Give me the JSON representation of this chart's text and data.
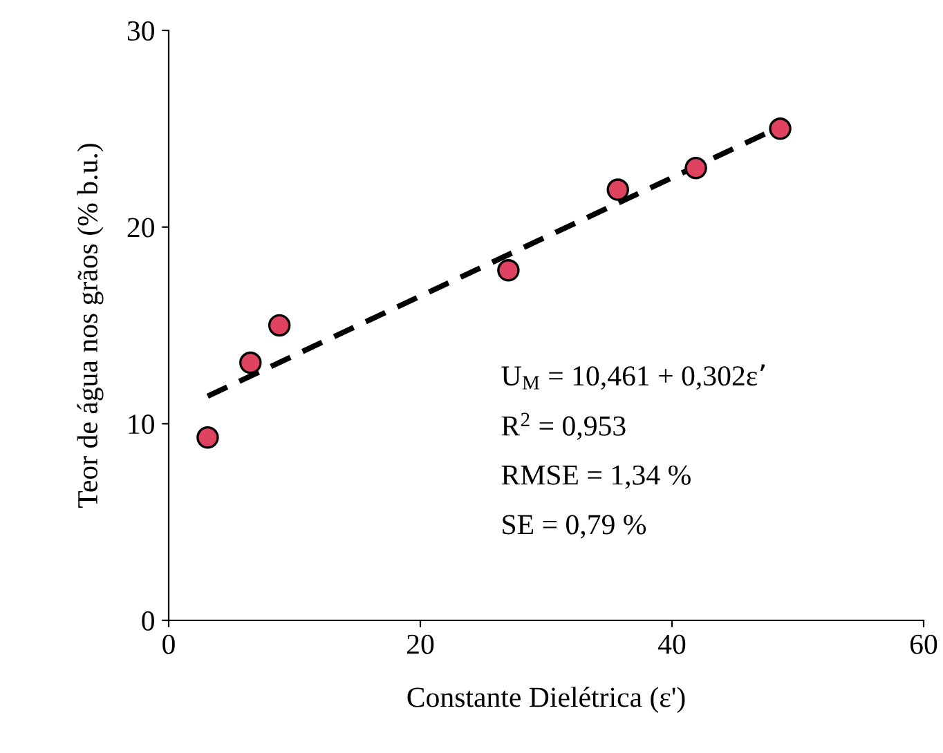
{
  "chart_data": {
    "type": "scatter",
    "xlabel": "Constante Dielétrica (ε')",
    "ylabel": "Teor de água nos grãos (% b.u.)",
    "xlim": [
      0,
      60
    ],
    "xticks": [
      0,
      20,
      40,
      60
    ],
    "ylim": [
      0,
      30
    ],
    "yticks": [
      0,
      10,
      20,
      30
    ],
    "grid": false,
    "legend": false,
    "series": [
      {
        "color": "#e0435f",
        "marker": "circle",
        "x": [
          3.1,
          6.5,
          8.8,
          27.0,
          35.7,
          41.9,
          48.6
        ],
        "values": [
          9.3,
          13.1,
          15.0,
          17.8,
          21.9,
          23.0,
          25.0
        ]
      },
      {
        "type": "line",
        "color": "#000000",
        "line_style": "dashed",
        "marker": "none",
        "x": [
          3.1,
          48.6
        ],
        "values": [
          11.4,
          25.1
        ]
      }
    ],
    "annotations": [
      "U$_{M}$ = 10,461 + 0,302ε’",
      "R$^{2}$ = 0,953",
      "RMSE = 1,34 %",
      "SE = 0,79 %"
    ]
  }
}
